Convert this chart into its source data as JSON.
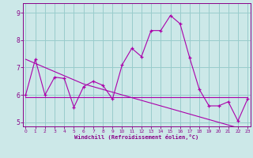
{
  "xlabel": "Windchill (Refroidissement éolien,°C)",
  "background_color": "#cce8e8",
  "line_color": "#aa00aa",
  "grid_color": "#99cccc",
  "x": [
    0,
    1,
    2,
    3,
    4,
    5,
    6,
    7,
    8,
    9,
    10,
    11,
    12,
    13,
    14,
    15,
    16,
    17,
    18,
    19,
    20,
    21,
    22,
    23
  ],
  "y_main": [
    6.0,
    7.3,
    6.0,
    6.65,
    6.6,
    5.55,
    6.3,
    6.5,
    6.35,
    5.85,
    7.1,
    7.7,
    7.4,
    8.35,
    8.35,
    8.9,
    8.6,
    7.35,
    6.2,
    5.6,
    5.6,
    5.75,
    5.05,
    5.85
  ],
  "y_trend1": [
    5.91,
    5.91,
    5.91,
    5.91,
    5.91,
    5.91,
    5.91,
    5.91,
    5.91,
    5.91,
    5.91,
    5.91,
    5.91,
    5.91,
    5.91,
    5.91,
    5.91,
    5.91,
    5.91,
    5.91,
    5.91,
    5.91,
    5.91,
    5.91
  ],
  "y_trend2": [
    7.3,
    7.15,
    7.0,
    6.85,
    6.7,
    6.55,
    6.4,
    6.3,
    6.2,
    6.1,
    6.0,
    5.9,
    5.8,
    5.7,
    5.6,
    5.5,
    5.4,
    5.3,
    5.2,
    5.1,
    5.0,
    4.9,
    4.8,
    4.7
  ],
  "ylim_bottom": 4.85,
  "ylim_top": 9.35,
  "yticks": [
    5,
    6,
    7,
    8,
    9
  ],
  "xticks": [
    0,
    1,
    2,
    3,
    4,
    5,
    6,
    7,
    8,
    9,
    10,
    11,
    12,
    13,
    14,
    15,
    16,
    17,
    18,
    19,
    20,
    21,
    22,
    23
  ],
  "spine_color": "#880088",
  "tick_color": "#880088",
  "label_color": "#880088"
}
